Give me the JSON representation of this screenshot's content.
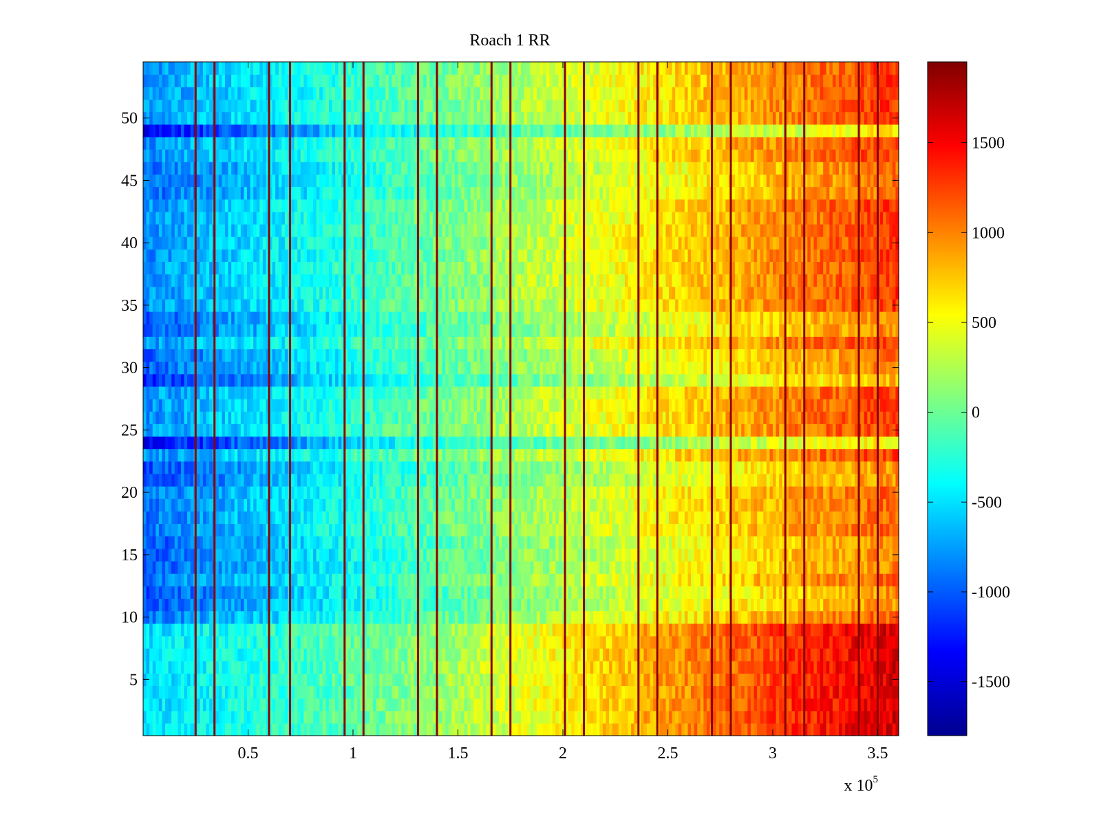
{
  "chart_data": {
    "type": "heatmap",
    "title": "Roach 1 RR",
    "xlabel": "",
    "ylabel": "",
    "x_multiplier_label": "x 10",
    "x_multiplier_exponent": "5",
    "xlim": [
      0,
      3.6
    ],
    "ylim": [
      0.5,
      54.5
    ],
    "x_ticks": [
      0.5,
      1,
      1.5,
      2,
      2.5,
      3,
      3.5
    ],
    "x_tick_labels": [
      "0.5",
      "1",
      "1.5",
      "2",
      "2.5",
      "3",
      "3.5"
    ],
    "y_ticks": [
      5,
      10,
      15,
      20,
      25,
      30,
      35,
      40,
      45,
      50
    ],
    "y_tick_labels": [
      "5",
      "10",
      "15",
      "20",
      "25",
      "30",
      "35",
      "40",
      "45",
      "50"
    ],
    "rows": 54,
    "columns_sampled": 240,
    "colormap": "jet",
    "colorbar": {
      "range": [
        -1800,
        1950
      ],
      "ticks": [
        -1500,
        -1000,
        -500,
        0,
        500,
        1000,
        1500
      ],
      "tick_labels": [
        "-1500",
        "-1000",
        "-500",
        "0",
        "500",
        "1000",
        "1500"
      ]
    },
    "trend": {
      "value_at_x_start": -800,
      "value_at_x_end": 1300,
      "description": "values rise roughly linearly with x"
    },
    "row_offsets": [
      {
        "rows": [
          1,
          9
        ],
        "offset": 350
      },
      {
        "rows": [
          10,
          20
        ],
        "offset": -150
      },
      {
        "rows": [
          11,
          12
        ],
        "offset": -200
      },
      {
        "rows": [
          14,
          16
        ],
        "offset": -150
      },
      {
        "rows": [
          21,
          22
        ],
        "offset": -350
      },
      {
        "rows": [
          24,
          24
        ],
        "offset": -700
      },
      {
        "rows": [
          29,
          29
        ],
        "offset": -500
      },
      {
        "rows": [
          30,
          31
        ],
        "offset": -250
      },
      {
        "rows": [
          33,
          34
        ],
        "offset": -300
      },
      {
        "rows": [
          44,
          46
        ],
        "offset": -200
      },
      {
        "rows": [
          49,
          49
        ],
        "offset": -700
      }
    ],
    "stripes": [
      {
        "x": 0.25,
        "value": 1900
      },
      {
        "x": 0.34,
        "value": 1900
      },
      {
        "x": 0.6,
        "value": 1900
      },
      {
        "x": 0.7,
        "value": 1900
      },
      {
        "x": 0.96,
        "value": 1900
      },
      {
        "x": 1.05,
        "value": 1900
      },
      {
        "x": 1.31,
        "value": 1900
      },
      {
        "x": 1.4,
        "value": 1900
      },
      {
        "x": 1.66,
        "value": 1900
      },
      {
        "x": 1.75,
        "value": 1900
      },
      {
        "x": 2.01,
        "value": 1900
      },
      {
        "x": 2.1,
        "value": 1900
      },
      {
        "x": 2.36,
        "value": 1900
      },
      {
        "x": 2.45,
        "value": 1900
      },
      {
        "x": 2.71,
        "value": 1900
      },
      {
        "x": 2.8,
        "value": 1900
      },
      {
        "x": 3.06,
        "value": 1900
      },
      {
        "x": 3.15,
        "value": 1900
      },
      {
        "x": 3.41,
        "value": 1900
      },
      {
        "x": 3.5,
        "value": 1900
      }
    ]
  }
}
